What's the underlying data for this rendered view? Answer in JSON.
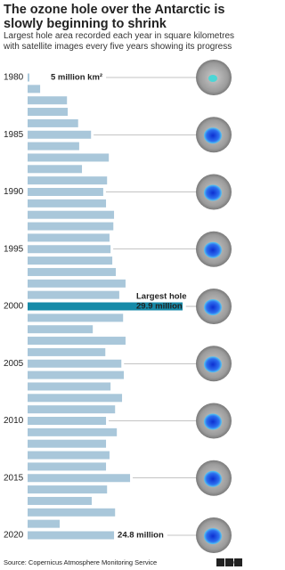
{
  "chart_data": {
    "type": "barh",
    "title": "The ozone hole over the Antarctic is slowly beginning to shrink",
    "subtitle": "Largest hole area recorded each year in square kilometres with satellite images every five years showing its progress",
    "source": "Source: Copernicus Atmosphere Monitoring Service",
    "logo": "BBC",
    "annotations": [
      "5 million km²",
      "Largest hole"
    ],
    "categories": [
      "1980",
      null,
      null,
      null,
      null,
      "1985",
      null,
      null,
      null,
      null,
      "1990",
      null,
      null,
      null,
      null,
      "1995",
      null,
      null,
      null,
      null,
      "2000",
      null,
      null,
      null,
      null,
      "2005",
      null,
      null,
      null,
      null,
      "2010",
      null,
      null,
      null,
      null,
      "2015",
      null,
      null,
      null,
      null,
      "2020"
    ],
    "values": [
      0.5,
      3.6,
      11.3,
      11.5,
      14.5,
      18.2,
      14.8,
      23.3,
      15.6,
      22.8,
      21.7,
      22.5,
      24.8,
      24.6,
      23.5,
      23.8,
      24.3,
      25.3,
      28.1,
      26.3,
      29.9,
      27.4,
      18.7,
      28.1,
      22.3,
      26.9,
      27.6,
      23.8,
      27.1,
      25.1,
      22.5,
      25.6,
      22.5,
      23.5,
      22.5,
      29.4,
      22.8,
      18.4,
      25.1,
      9.2,
      24.8
    ],
    "value_labels": [
      null,
      null,
      null,
      null,
      null,
      null,
      null,
      null,
      null,
      null,
      null,
      null,
      null,
      null,
      null,
      null,
      null,
      null,
      null,
      null,
      "29.9 million",
      null,
      null,
      null,
      null,
      null,
      null,
      null,
      null,
      null,
      null,
      null,
      null,
      null,
      null,
      null,
      null,
      null,
      null,
      null,
      "24.8 million"
    ],
    "color": "#a9c7da",
    "highlight": "2000",
    "highlight_color": "#168aa8"
  }
}
